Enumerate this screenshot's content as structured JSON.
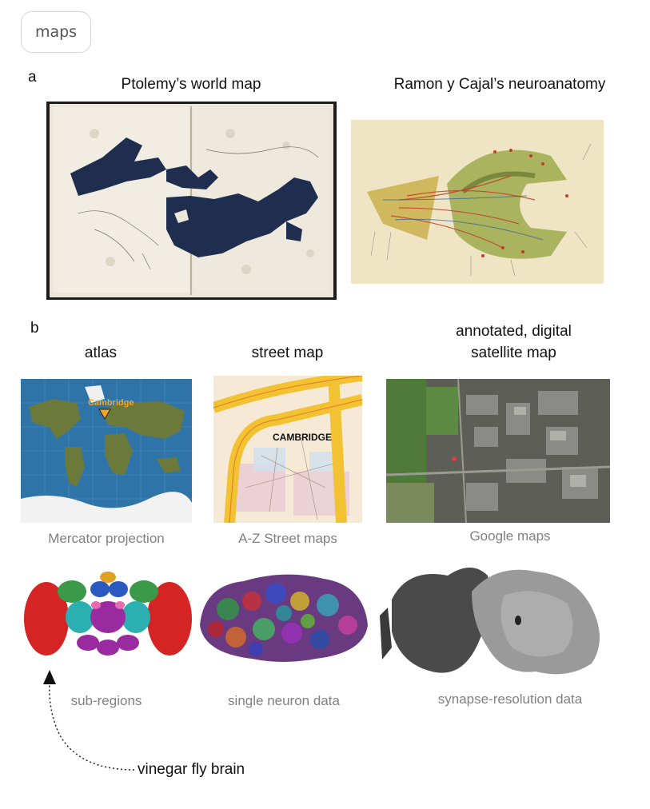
{
  "tag": "maps",
  "panel_a": {
    "letter": "a",
    "left_title": "Ptolemy’s world map",
    "right_title": "Ramon y Cajal’s neuroanatomy"
  },
  "panel_b": {
    "letter": "b",
    "titles": {
      "atlas": "atlas",
      "street": "street map",
      "satellite_line1": "annotated, digital",
      "satellite_line2": "satellite map"
    },
    "atlas_marker_label": "Cambridge",
    "street_map_label": "CAMBRIDGE",
    "captions": {
      "atlas": "Mercator projection",
      "street": "A-Z Street maps",
      "satellite": "Google maps",
      "subregions": "sub-regions",
      "neuron": "single neuron data",
      "synapse": "synapse-resolution data"
    },
    "fly_label": "vinegar fly brain"
  },
  "colors": {
    "ocean": "#2f74a8",
    "marker": "#f5a623",
    "street_yellow": "#f3c233",
    "fly_red": "#d42424",
    "caption_gray": "#808080"
  }
}
